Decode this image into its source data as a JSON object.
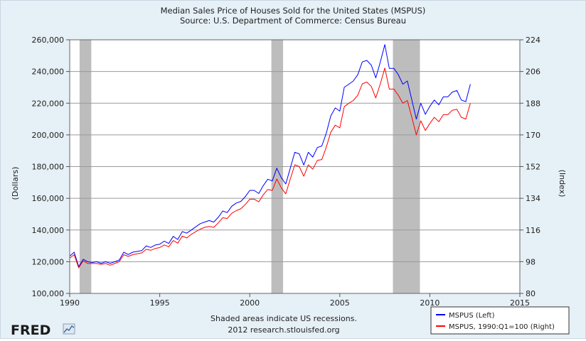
{
  "chart_data": {
    "type": "line",
    "title": "Median Sales Price of Houses Sold for the United States (MSPUS)",
    "subtitle": "Source: U.S. Department of Commerce: Census Bureau",
    "xlabel": "",
    "ylabel_left": "(Dollars)",
    "ylabel_right": "(Index)",
    "xlim": [
      1990,
      2015
    ],
    "ylim_left": [
      100000,
      260000
    ],
    "ylim_right": [
      80,
      224
    ],
    "x_ticks": [
      1990,
      1995,
      2000,
      2005,
      2010,
      2015
    ],
    "x_tick_labels": [
      "1990",
      "1995",
      "2000",
      "2005",
      "2010",
      "2015"
    ],
    "y_ticks_left": [
      100000,
      120000,
      140000,
      160000,
      180000,
      200000,
      220000,
      240000,
      260000
    ],
    "y_tick_labels_left": [
      "100,000",
      "120,000",
      "140,000",
      "160,000",
      "180,000",
      "200,000",
      "220,000",
      "240,000",
      "260,000"
    ],
    "y_ticks_right": [
      80,
      98,
      116,
      134,
      152,
      170,
      188,
      206,
      224
    ],
    "y_tick_labels_right": [
      "80",
      "98",
      "116",
      "134",
      "152",
      "170",
      "188",
      "206",
      "224"
    ],
    "grid": "horizontal",
    "legend_position": "bottom-right",
    "recessions": [
      [
        1990.55,
        1991.2
      ],
      [
        2001.2,
        2001.85
      ],
      [
        2007.95,
        2009.45
      ]
    ],
    "series": [
      {
        "name": "MSPUS (Left)",
        "axis": "left",
        "color": "#0000ff",
        "points": [
          [
            1990.0,
            123500
          ],
          [
            1990.25,
            126000
          ],
          [
            1990.5,
            117000
          ],
          [
            1990.75,
            121500
          ],
          [
            1991.0,
            120000
          ],
          [
            1991.25,
            119500
          ],
          [
            1991.5,
            120000
          ],
          [
            1991.75,
            119000
          ],
          [
            1992.0,
            120000
          ],
          [
            1992.25,
            119000
          ],
          [
            1992.5,
            120000
          ],
          [
            1992.75,
            121000
          ],
          [
            1993.0,
            126000
          ],
          [
            1993.25,
            124500
          ],
          [
            1993.5,
            126000
          ],
          [
            1993.75,
            126500
          ],
          [
            1994.0,
            127000
          ],
          [
            1994.25,
            130000
          ],
          [
            1994.5,
            129000
          ],
          [
            1994.75,
            130500
          ],
          [
            1995.0,
            131000
          ],
          [
            1995.25,
            133000
          ],
          [
            1995.5,
            131500
          ],
          [
            1995.75,
            136000
          ],
          [
            1996.0,
            134000
          ],
          [
            1996.25,
            139000
          ],
          [
            1996.5,
            138000
          ],
          [
            1996.75,
            140000
          ],
          [
            1997.0,
            142000
          ],
          [
            1997.25,
            144000
          ],
          [
            1997.5,
            145000
          ],
          [
            1997.75,
            146000
          ],
          [
            1998.0,
            145000
          ],
          [
            1998.25,
            148000
          ],
          [
            1998.5,
            152000
          ],
          [
            1998.75,
            151000
          ],
          [
            1999.0,
            155000
          ],
          [
            1999.25,
            157000
          ],
          [
            1999.5,
            158000
          ],
          [
            1999.75,
            161000
          ],
          [
            2000.0,
            165000
          ],
          [
            2000.25,
            165000
          ],
          [
            2000.5,
            163000
          ],
          [
            2000.75,
            168000
          ],
          [
            2001.0,
            172000
          ],
          [
            2001.25,
            171000
          ],
          [
            2001.5,
            179000
          ],
          [
            2001.75,
            173000
          ],
          [
            2002.0,
            169000
          ],
          [
            2002.25,
            179000
          ],
          [
            2002.5,
            189000
          ],
          [
            2002.75,
            188000
          ],
          [
            2003.0,
            181000
          ],
          [
            2003.25,
            189000
          ],
          [
            2003.5,
            186000
          ],
          [
            2003.75,
            192000
          ],
          [
            2004.0,
            193000
          ],
          [
            2004.25,
            201000
          ],
          [
            2004.5,
            212000
          ],
          [
            2004.75,
            217000
          ],
          [
            2005.0,
            215000
          ],
          [
            2005.25,
            230000
          ],
          [
            2005.5,
            232000
          ],
          [
            2005.75,
            234000
          ],
          [
            2006.0,
            238000
          ],
          [
            2006.25,
            246000
          ],
          [
            2006.5,
            247000
          ],
          [
            2006.75,
            244000
          ],
          [
            2007.0,
            236000
          ],
          [
            2007.25,
            246000
          ],
          [
            2007.5,
            257000
          ],
          [
            2007.75,
            242000
          ],
          [
            2008.0,
            242000
          ],
          [
            2008.25,
            238000
          ],
          [
            2008.5,
            232000
          ],
          [
            2008.75,
            234000
          ],
          [
            2009.0,
            222000
          ],
          [
            2009.25,
            210000
          ],
          [
            2009.5,
            220000
          ],
          [
            2009.75,
            213000
          ],
          [
            2010.0,
            218000
          ],
          [
            2010.25,
            222000
          ],
          [
            2010.5,
            219000
          ],
          [
            2010.75,
            224000
          ],
          [
            2011.0,
            224000
          ],
          [
            2011.25,
            227000
          ],
          [
            2011.5,
            228000
          ],
          [
            2011.75,
            222000
          ],
          [
            2012.0,
            221000
          ],
          [
            2012.25,
            232000
          ]
        ]
      },
      {
        "name": "MSPUS, 1990:Q1=100 (Right)",
        "axis": "right",
        "color": "#ff0000",
        "points": [
          [
            1990.0,
            100
          ],
          [
            1990.25,
            102
          ],
          [
            1990.5,
            94.5
          ],
          [
            1990.75,
            98.5
          ],
          [
            1991.0,
            97
          ],
          [
            1991.25,
            97
          ],
          [
            1991.5,
            97
          ],
          [
            1991.75,
            96.5
          ],
          [
            1992.0,
            97
          ],
          [
            1992.25,
            96
          ],
          [
            1992.5,
            97
          ],
          [
            1992.75,
            98
          ],
          [
            1993.0,
            102
          ],
          [
            1993.25,
            101
          ],
          [
            1993.5,
            102
          ],
          [
            1993.75,
            102.5
          ],
          [
            1994.0,
            103
          ],
          [
            1994.25,
            105
          ],
          [
            1994.5,
            104.5
          ],
          [
            1994.75,
            105.5
          ],
          [
            1995.0,
            106
          ],
          [
            1995.25,
            107.5
          ],
          [
            1995.5,
            106.5
          ],
          [
            1995.75,
            110
          ],
          [
            1996.0,
            108.5
          ],
          [
            1996.25,
            112.5
          ],
          [
            1996.5,
            111.5
          ],
          [
            1996.75,
            113.5
          ],
          [
            1997.0,
            115
          ],
          [
            1997.25,
            116.5
          ],
          [
            1997.5,
            117.5
          ],
          [
            1997.75,
            118
          ],
          [
            1998.0,
            117.5
          ],
          [
            1998.25,
            120
          ],
          [
            1998.5,
            123
          ],
          [
            1998.75,
            122.5
          ],
          [
            1999.0,
            125.5
          ],
          [
            1999.25,
            127
          ],
          [
            1999.5,
            128
          ],
          [
            1999.75,
            130.5
          ],
          [
            2000.0,
            133.5
          ],
          [
            2000.25,
            133.5
          ],
          [
            2000.5,
            132
          ],
          [
            2000.75,
            136
          ],
          [
            2001.0,
            139
          ],
          [
            2001.25,
            138.5
          ],
          [
            2001.5,
            145
          ],
          [
            2001.75,
            140
          ],
          [
            2002.0,
            136.5
          ],
          [
            2002.25,
            145
          ],
          [
            2002.5,
            153
          ],
          [
            2002.75,
            152
          ],
          [
            2003.0,
            146.5
          ],
          [
            2003.25,
            153
          ],
          [
            2003.5,
            150.5
          ],
          [
            2003.75,
            155.5
          ],
          [
            2004.0,
            156
          ],
          [
            2004.25,
            163
          ],
          [
            2004.5,
            171.5
          ],
          [
            2004.75,
            175.5
          ],
          [
            2005.0,
            174
          ],
          [
            2005.25,
            186
          ],
          [
            2005.5,
            188
          ],
          [
            2005.75,
            189.5
          ],
          [
            2006.0,
            192.5
          ],
          [
            2006.25,
            199
          ],
          [
            2006.5,
            200
          ],
          [
            2006.75,
            197.5
          ],
          [
            2007.0,
            191
          ],
          [
            2007.25,
            199
          ],
          [
            2007.5,
            208
          ],
          [
            2007.75,
            196
          ],
          [
            2008.0,
            196
          ],
          [
            2008.25,
            192.5
          ],
          [
            2008.5,
            188
          ],
          [
            2008.75,
            189.5
          ],
          [
            2009.0,
            180
          ],
          [
            2009.25,
            170
          ],
          [
            2009.5,
            178
          ],
          [
            2009.75,
            172.5
          ],
          [
            2010.0,
            176.5
          ],
          [
            2010.25,
            180
          ],
          [
            2010.5,
            177.5
          ],
          [
            2010.75,
            181.5
          ],
          [
            2011.0,
            181.5
          ],
          [
            2011.25,
            184
          ],
          [
            2011.5,
            184.5
          ],
          [
            2011.75,
            180
          ],
          [
            2012.0,
            179
          ],
          [
            2012.25,
            188
          ]
        ]
      }
    ]
  },
  "footer": {
    "note_line1": "Shaded areas indicate US recessions.",
    "note_line2": "2012 research.stlouisfed.org",
    "logo_text": "FRED"
  },
  "legend": {
    "items": [
      "MSPUS (Left)",
      "MSPUS, 1990:Q1=100 (Right)"
    ]
  }
}
